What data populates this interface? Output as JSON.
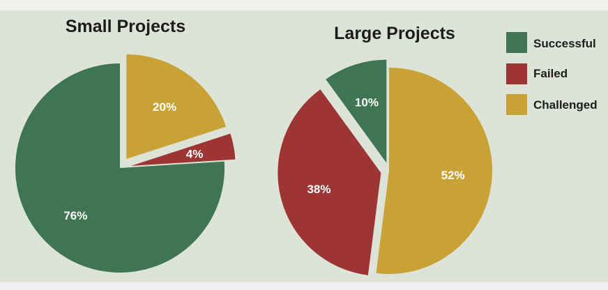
{
  "chart_data": [
    {
      "type": "pie",
      "title": "Small Projects",
      "slices": [
        {
          "label": "Successful",
          "value": 76,
          "text": "76%",
          "color": "#3f7552",
          "exploded": false
        },
        {
          "label": "Failed",
          "value": 4,
          "text": "4%",
          "color": "#9e3535",
          "exploded": true
        },
        {
          "label": "Challenged",
          "value": 20,
          "text": "20%",
          "color": "#c9a235",
          "exploded": true
        }
      ]
    },
    {
      "type": "pie",
      "title": "Large Projects",
      "slices": [
        {
          "label": "Successful",
          "value": 10,
          "text": "10%",
          "color": "#3f7552",
          "exploded": true
        },
        {
          "label": "Failed",
          "value": 38,
          "text": "38%",
          "color": "#9e3535",
          "exploded": true
        },
        {
          "label": "Challenged",
          "value": 52,
          "text": "52%",
          "color": "#c9a235",
          "exploded": false
        }
      ]
    }
  ],
  "legend": {
    "placement": "top-right",
    "items": [
      {
        "label": "Successful",
        "color": "#3f7552"
      },
      {
        "label": "Failed",
        "color": "#9e3535"
      },
      {
        "label": "Challenged",
        "color": "#c9a235"
      }
    ]
  }
}
